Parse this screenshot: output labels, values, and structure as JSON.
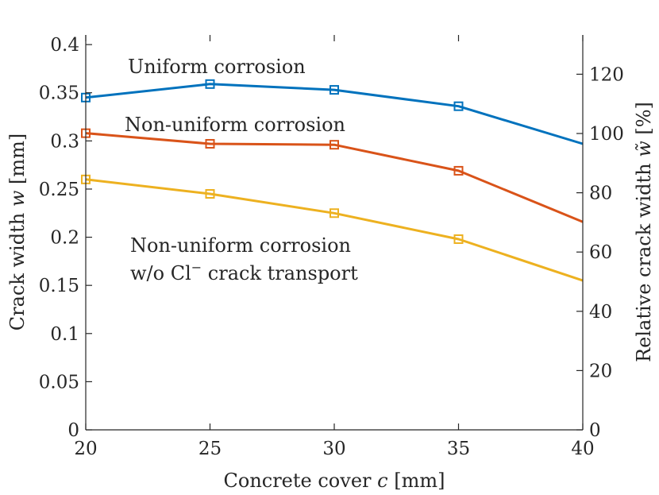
{
  "chart_data": {
    "type": "line",
    "x": [
      20,
      25,
      30,
      35,
      40
    ],
    "xlabel_prefix": "Concrete cover",
    "xlabel_var": "c",
    "xlabel_unit": "[mm]",
    "ylabel_prefix": "Crack width",
    "ylabel_var": "w",
    "ylabel_unit": "[mm]",
    "y2label_prefix": "Relative crack width",
    "y2label_var": "w̃",
    "y2label_unit": "[%]",
    "xlim": [
      20,
      40
    ],
    "ylim": [
      0,
      0.41
    ],
    "y2lim": [
      0,
      133.25
    ],
    "xticks": [
      "20",
      "25",
      "30",
      "35",
      "40"
    ],
    "yticks": [
      {
        "v": 0,
        "label": "0"
      },
      {
        "v": 0.05,
        "label": "0.05"
      },
      {
        "v": 0.1,
        "label": "0.1"
      },
      {
        "v": 0.15,
        "label": "0.15"
      },
      {
        "v": 0.2,
        "label": "0.2"
      },
      {
        "v": 0.25,
        "label": "0.25"
      },
      {
        "v": 0.3,
        "label": "0.3"
      },
      {
        "v": 0.35,
        "label": "0.35"
      },
      {
        "v": 0.4,
        "label": "0.4"
      }
    ],
    "y2ticks": [
      {
        "v": 0,
        "label": "0"
      },
      {
        "v": 20,
        "label": "20"
      },
      {
        "v": 40,
        "label": "40"
      },
      {
        "v": 60,
        "label": "60"
      },
      {
        "v": 80,
        "label": "80"
      },
      {
        "v": 100,
        "label": "100"
      },
      {
        "v": 120,
        "label": "120"
      }
    ],
    "grid": false,
    "series": [
      {
        "name": "Uniform corrosion",
        "color": "#0072BD",
        "values": [
          0.345,
          0.359,
          0.353,
          0.336,
          0.297
        ],
        "markers": [
          true,
          true,
          true,
          true,
          false
        ]
      },
      {
        "name": "Non-uniform corrosion",
        "color": "#D95319",
        "values": [
          0.308,
          0.297,
          0.296,
          0.269,
          0.216
        ],
        "markers": [
          true,
          true,
          true,
          true,
          false
        ]
      },
      {
        "name": "Non-uniform corrosion w/o Cl⁻ crack transport",
        "color": "#EDB120",
        "values": [
          0.26,
          0.245,
          0.225,
          0.198,
          0.155
        ],
        "markers": [
          true,
          true,
          true,
          true,
          false
        ]
      }
    ],
    "annotations": {
      "uniform": "Uniform corrosion",
      "nonuniform": "Non-uniform corrosion",
      "nocl_line1": "Non-uniform corrosion",
      "nocl_line2_prefix": "w/o Cl",
      "nocl_line2_sup": "−",
      "nocl_line2_suffix": " crack transport"
    }
  }
}
